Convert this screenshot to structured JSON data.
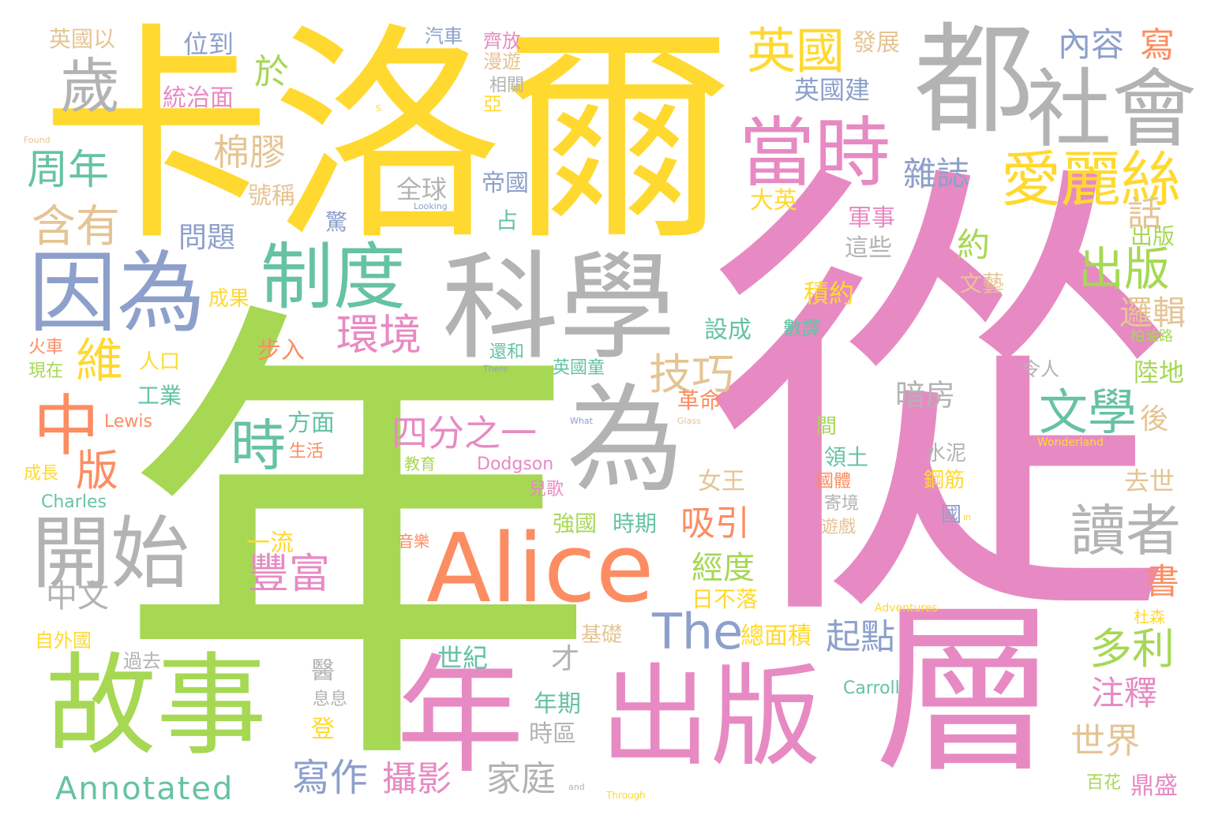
{
  "colors": {
    "yellow": "#ffd92f",
    "green": "#a6d854",
    "pink": "#e78ac3",
    "grey": "#b3b3b3",
    "blue": "#8da0cb",
    "teal": "#66c2a5",
    "orange": "#fc8d62",
    "tan": "#e5c494"
  },
  "words": [
    "卡洛爾",
    "從",
    "年",
    "都",
    "社會",
    "因為",
    "科學",
    "歲",
    "當時",
    "愛麗絲",
    "制度",
    "英國",
    "故事",
    "出版",
    "層",
    "年",
    "Alice",
    "為",
    "開始",
    "中",
    "The",
    "讀者",
    "文學",
    "四分之一",
    "多利",
    "技巧",
    "時",
    "版",
    "周年",
    "含有",
    "維",
    "環境",
    "出版",
    "於",
    "棉膠",
    "內容",
    "寫",
    "英國以",
    "位到",
    "汽車",
    "齊放",
    "漫遊",
    "發展",
    "英國建",
    "統治面",
    "相關",
    "雜誌",
    "約",
    "話",
    "亞",
    "全球",
    "帝國",
    "號稱",
    "問題",
    "大英",
    "軍事",
    "這些",
    "出版",
    "邏輯",
    "占",
    "驚",
    "成果",
    "積約",
    "文藝",
    "設成",
    "數譯",
    "人口",
    "步入",
    "火車",
    "現在",
    "工業",
    "暗房",
    "後",
    "陸地",
    "英國童",
    "還和",
    "令人",
    "革命",
    "Lewis",
    "方面",
    "間",
    "生活",
    "領土",
    "水泥",
    "成長",
    "教育",
    "Dodgson",
    "鋼筋",
    "去世",
    "Charles",
    "兒歌",
    "女王",
    "寄境",
    "吸引",
    "強國",
    "時期",
    "國體",
    "國",
    "遊戲",
    "一流",
    "音樂",
    "經度",
    "中文",
    "豐富",
    "日不落",
    "書",
    "自外國",
    "基礎",
    "總面積",
    "起點",
    "世紀",
    "注釋",
    "才",
    "年期",
    "過去",
    "醫",
    "息息",
    "Carroll",
    "登",
    "時區",
    "世界",
    "寫作",
    "攝影",
    "家庭",
    "Annotated",
    "百花",
    "鼎盛",
    "杜森",
    "柏油路",
    "Adventures",
    "Wonderland",
    "Through",
    "Found",
    "Looking",
    "There",
    "What",
    "Glass",
    "and",
    "in",
    "S"
  ]
}
